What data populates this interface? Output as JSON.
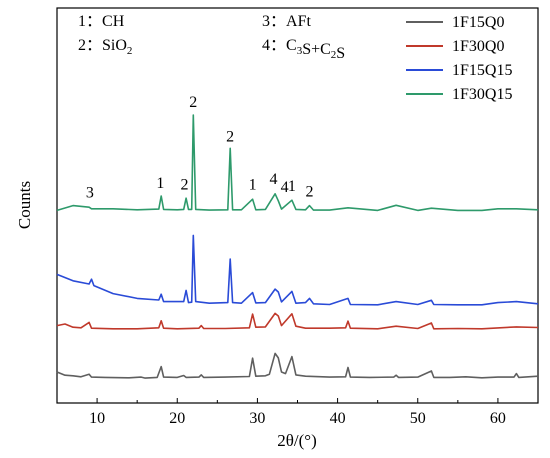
{
  "chart_data": {
    "type": "line",
    "xlabel": "2θ/(°)",
    "ylabel": "Counts",
    "xlim": [
      5,
      65
    ],
    "x_ticks": [
      10,
      20,
      30,
      40,
      50,
      60
    ],
    "y_ticks_shown": false,
    "grid": false,
    "legend_position": "top-right",
    "series": [
      {
        "name": "1F15Q0",
        "color": "#5f5f5f",
        "offset": 0,
        "points": [
          [
            5,
            2.5
          ],
          [
            6,
            1.5
          ],
          [
            7,
            1.3
          ],
          [
            8,
            1
          ],
          [
            9,
            1.8
          ],
          [
            9.3,
            0.9
          ],
          [
            11,
            0.8
          ],
          [
            14,
            0.7
          ],
          [
            15.5,
            0.9
          ],
          [
            16,
            0.6
          ],
          [
            17.5,
            0.8
          ],
          [
            18,
            4.2
          ],
          [
            18.3,
            0.9
          ],
          [
            20,
            0.8
          ],
          [
            20.8,
            1.4
          ],
          [
            21.1,
            0.8
          ],
          [
            22.7,
            0.9
          ],
          [
            23,
            1.6
          ],
          [
            23.3,
            0.8
          ],
          [
            26,
            0.9
          ],
          [
            29,
            1.1
          ],
          [
            29.4,
            6.8
          ],
          [
            29.8,
            1.2
          ],
          [
            31,
            1.3
          ],
          [
            31.5,
            1.8
          ],
          [
            32.2,
            8.3
          ],
          [
            32.6,
            6.9
          ],
          [
            33,
            2.5
          ],
          [
            33.5,
            2
          ],
          [
            34.3,
            7.3
          ],
          [
            34.8,
            1.6
          ],
          [
            36,
            1.2
          ],
          [
            39,
            0.9
          ],
          [
            41,
            1
          ],
          [
            41.3,
            3.9
          ],
          [
            41.6,
            0.9
          ],
          [
            44,
            0.8
          ],
          [
            47,
            0.9
          ],
          [
            47.3,
            1.5
          ],
          [
            47.6,
            0.8
          ],
          [
            50,
            0.9
          ],
          [
            51.7,
            2.8
          ],
          [
            52,
            0.8
          ],
          [
            54,
            0.8
          ],
          [
            56,
            1
          ],
          [
            58,
            0.7
          ],
          [
            60,
            0.9
          ],
          [
            62,
            0.9
          ],
          [
            62.3,
            2
          ],
          [
            62.6,
            0.8
          ],
          [
            65,
            1.2
          ]
        ]
      },
      {
        "name": "1F30Q0",
        "color": "#c0392b",
        "offset": 15,
        "points": [
          [
            5,
            2
          ],
          [
            6,
            2.5
          ],
          [
            7,
            1.5
          ],
          [
            8,
            1.3
          ],
          [
            9,
            3
          ],
          [
            9.3,
            1.2
          ],
          [
            12,
            1
          ],
          [
            15,
            1
          ],
          [
            17.7,
            1.3
          ],
          [
            18,
            3.5
          ],
          [
            18.3,
            1.2
          ],
          [
            20,
            1
          ],
          [
            22.7,
            1.2
          ],
          [
            23,
            2
          ],
          [
            23.3,
            1.1
          ],
          [
            26,
            1.1
          ],
          [
            29,
            1.3
          ],
          [
            29.4,
            5.6
          ],
          [
            29.8,
            1.5
          ],
          [
            31,
            1.6
          ],
          [
            32.2,
            5.8
          ],
          [
            32.6,
            5
          ],
          [
            33,
            2
          ],
          [
            34.3,
            5.7
          ],
          [
            34.8,
            1.8
          ],
          [
            36,
            1.2
          ],
          [
            39,
            1.2
          ],
          [
            41,
            1.3
          ],
          [
            41.3,
            3.4
          ],
          [
            41.6,
            1.2
          ],
          [
            45,
            1
          ],
          [
            47.3,
            1.8
          ],
          [
            50,
            1.1
          ],
          [
            51.7,
            2.8
          ],
          [
            52,
            1
          ],
          [
            55,
            1.1
          ],
          [
            58,
            1
          ],
          [
            62.3,
            1.6
          ],
          [
            65,
            1.4
          ]
        ]
      },
      {
        "name": "1F15Q15",
        "color": "#2a4bd7",
        "offset": 22,
        "points": [
          [
            5,
            11
          ],
          [
            7,
            9
          ],
          [
            9,
            8
          ],
          [
            9.3,
            9.5
          ],
          [
            9.6,
            7.5
          ],
          [
            12,
            5
          ],
          [
            15,
            3.5
          ],
          [
            17.7,
            3
          ],
          [
            18,
            4.8
          ],
          [
            18.3,
            2.5
          ],
          [
            20,
            2.5
          ],
          [
            20.8,
            2.5
          ],
          [
            21.1,
            6
          ],
          [
            21.4,
            2.2
          ],
          [
            21.8,
            2.3
          ],
          [
            22,
            23.2
          ],
          [
            22.3,
            2.5
          ],
          [
            24,
            2
          ],
          [
            26.3,
            2.2
          ],
          [
            26.6,
            15.8
          ],
          [
            26.9,
            2.2
          ],
          [
            28,
            2
          ],
          [
            29.4,
            5.3
          ],
          [
            29.8,
            2.1
          ],
          [
            31,
            2.2
          ],
          [
            32.2,
            6.4
          ],
          [
            32.6,
            5.5
          ],
          [
            33,
            2.4
          ],
          [
            34.3,
            5.7
          ],
          [
            34.8,
            2
          ],
          [
            36,
            2.2
          ],
          [
            36.5,
            3.5
          ],
          [
            37,
            1.8
          ],
          [
            39,
            1.6
          ],
          [
            41.3,
            3.5
          ],
          [
            41.6,
            1.6
          ],
          [
            45,
            1.5
          ],
          [
            47.3,
            2.5
          ],
          [
            50,
            1.6
          ],
          [
            51.7,
            2.9
          ],
          [
            52,
            1.6
          ],
          [
            55,
            1.5
          ],
          [
            58,
            1.5
          ],
          [
            60,
            2.2
          ],
          [
            62.3,
            2.5
          ],
          [
            65,
            1.8
          ]
        ]
      },
      {
        "name": "1F30Q15",
        "color": "#2e9a6b",
        "offset": 52,
        "points": [
          [
            5,
            1
          ],
          [
            7,
            2.5
          ],
          [
            9,
            2
          ],
          [
            9.3,
            1.5
          ],
          [
            12,
            1.5
          ],
          [
            15,
            1.2
          ],
          [
            17.7,
            1.4
          ],
          [
            18,
            5.5
          ],
          [
            18.3,
            1.3
          ],
          [
            20,
            1.2
          ],
          [
            20.8,
            1.3
          ],
          [
            21.1,
            4.8
          ],
          [
            21.4,
            1.3
          ],
          [
            21.8,
            1.3
          ],
          [
            22,
            30.8
          ],
          [
            22.3,
            1.3
          ],
          [
            24,
            1.1
          ],
          [
            26.3,
            1.2
          ],
          [
            26.6,
            20.4
          ],
          [
            26.9,
            1.2
          ],
          [
            28,
            1.2
          ],
          [
            29.4,
            4.5
          ],
          [
            29.8,
            1.2
          ],
          [
            31,
            1.3
          ],
          [
            32.2,
            6.2
          ],
          [
            32.6,
            4
          ],
          [
            33,
            1.4
          ],
          [
            34.3,
            4.2
          ],
          [
            34.8,
            1.3
          ],
          [
            36,
            1.2
          ],
          [
            36.5,
            2.5
          ],
          [
            37,
            1.1
          ],
          [
            39,
            1.1
          ],
          [
            41.3,
            1.8
          ],
          [
            45,
            1
          ],
          [
            47.3,
            2.6
          ],
          [
            50,
            1
          ],
          [
            51.7,
            1.7
          ],
          [
            55,
            1
          ],
          [
            58,
            1
          ],
          [
            60,
            1.5
          ],
          [
            62.3,
            1.5
          ],
          [
            65,
            1.2
          ]
        ]
      }
    ],
    "key": [
      {
        "marker": "1",
        "text": "CH"
      },
      {
        "marker": "2",
        "text": "SiO",
        "sub": "2"
      },
      {
        "marker": "3",
        "text": "AFt"
      },
      {
        "marker": "4",
        "text": "C",
        "sub": "3",
        "text2": "S+C",
        "sub2": "2",
        "text3": "S"
      }
    ],
    "key_separator": "：",
    "peak_labels": [
      {
        "text": "3",
        "x": 9.1,
        "level": 57
      },
      {
        "text": "1",
        "x": 17.9,
        "level": 60
      },
      {
        "text": "2",
        "x": 20.9,
        "level": 59.5
      },
      {
        "text": "2",
        "x": 22.0,
        "level": 85.3
      },
      {
        "text": "2",
        "x": 26.6,
        "level": 74.5
      },
      {
        "text": "1",
        "x": 29.4,
        "level": 59.6
      },
      {
        "text": "4",
        "x": 32.0,
        "level": 61.3
      },
      {
        "text": "4",
        "x": 33.4,
        "level": 58.8
      },
      {
        "text": "1",
        "x": 34.3,
        "level": 59.1
      },
      {
        "text": "2",
        "x": 36.5,
        "level": 57.3
      }
    ]
  }
}
